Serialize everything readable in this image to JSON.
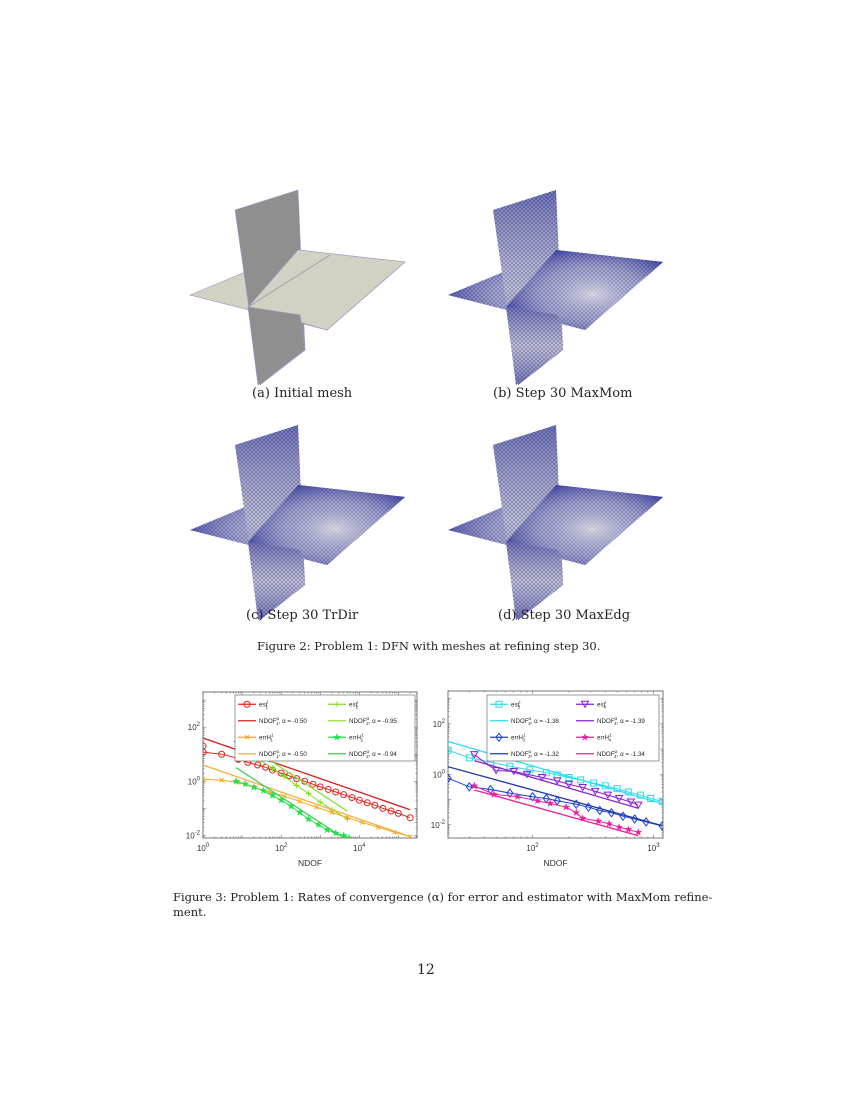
{
  "figure2": {
    "panels": [
      {
        "id": "a",
        "caption": "(a) Initial mesh",
        "style": "plain"
      },
      {
        "id": "b",
        "caption": "(b) Step 30 MaxMom",
        "style": "mesh"
      },
      {
        "id": "c",
        "caption": "(c) Step 30 TrDir",
        "style": "mesh"
      },
      {
        "id": "d",
        "caption": "(d) Step 30 MaxEdg",
        "style": "mesh"
      }
    ],
    "caption": "Figure 2: Problem 1: DFN with meshes at refining step 30.",
    "colors": {
      "plain_horizontal": "#d3d0c4",
      "plain_vertical": "#8f8f8f",
      "mesh_dark": "#1a1f8a",
      "mesh_light": "#c9c9d6"
    }
  },
  "figure3": {
    "caption_line1": "Figure 3: Problem 1: Rates of convergence (α) for error and estimator with MaxMom refine-",
    "caption_line2": "ment."
  },
  "page_number": "12",
  "chart_data": [
    {
      "type": "line",
      "title": "",
      "xlabel": "NDOF",
      "ylabel": "",
      "xscale": "log",
      "yscale": "log",
      "xlim": [
        1,
        300000
      ],
      "ylim": [
        0.008,
        2000
      ],
      "xticks": [
        "10^0",
        "10^2",
        "10^4"
      ],
      "yticks": [
        "10^-2",
        "10^0",
        "10^2"
      ],
      "grid": false,
      "legend_position": "top-right (inside, 2 columns)",
      "series": [
        {
          "name": "est^I_1",
          "color": "#e0241e",
          "marker": "circle",
          "x": [
            1,
            1,
            3,
            8,
            8,
            14,
            25,
            40,
            60,
            100,
            160,
            250,
            400,
            650,
            1000,
            1600,
            2500,
            4000,
            6500,
            10000,
            16000,
            25000,
            40000,
            65000,
            100000,
            200000
          ],
          "y": [
            20,
            12,
            10,
            7,
            6.5,
            5,
            4,
            3.3,
            2.6,
            2.0,
            1.6,
            1.25,
            1.0,
            0.78,
            0.62,
            0.5,
            0.4,
            0.32,
            0.25,
            0.2,
            0.16,
            0.13,
            0.1,
            0.08,
            0.065,
            0.045
          ]
        },
        {
          "name": "NDOF^α_1, α = -0.50",
          "color": "#d42020",
          "marker": "none",
          "x": [
            1,
            200000
          ],
          "y": [
            40,
            0.089
          ]
        },
        {
          "name": "est^I_2",
          "color": "#7ee01a",
          "marker": "plus",
          "x": [
            7,
            15,
            30,
            60,
            120,
            250,
            500,
            1000,
            2000,
            5000
          ],
          "y": [
            30,
            12,
            6,
            3,
            1.5,
            0.7,
            0.35,
            0.17,
            0.09,
            0.04
          ]
        },
        {
          "name": "NDOF^α_2, α = -0.95",
          "color": "#8ae23a",
          "marker": "none",
          "x": [
            7,
            5000
          ],
          "y": [
            40,
            0.078
          ]
        },
        {
          "name": "errH^1_1",
          "color": "#f5a81c",
          "marker": "x",
          "x": [
            1,
            3,
            8,
            20,
            50,
            120,
            300,
            800,
            2000,
            5000,
            12000,
            30000,
            80000,
            200000
          ],
          "y": [
            1.2,
            1.1,
            0.9,
            0.6,
            0.4,
            0.28,
            0.18,
            0.11,
            0.07,
            0.045,
            0.03,
            0.02,
            0.013,
            0.009
          ]
        },
        {
          "name": "NDOF^α_1, α = -0.50",
          "color": "#f0b040",
          "marker": "none",
          "x": [
            1,
            200000
          ],
          "y": [
            4,
            0.009
          ]
        },
        {
          "name": "errH^1_2",
          "color": "#22e04a",
          "marker": "star-filled",
          "x": [
            7,
            12,
            20,
            35,
            60,
            100,
            180,
            300,
            500,
            900,
            1500,
            2500,
            4000,
            5500
          ],
          "y": [
            1.0,
            0.8,
            0.6,
            0.45,
            0.3,
            0.2,
            0.12,
            0.07,
            0.04,
            0.025,
            0.016,
            0.012,
            0.01,
            0.008
          ]
        },
        {
          "name": "NDOF^α_2, α = -0.94",
          "color": "#44cc55",
          "marker": "none",
          "x": [
            7,
            5500
          ],
          "y": [
            3.2,
            0.006
          ]
        }
      ]
    },
    {
      "type": "line",
      "title": "",
      "xlabel": "NDOF",
      "ylabel": "",
      "xscale": "log",
      "yscale": "log",
      "xlim": [
        20,
        1200
      ],
      "ylim": [
        0.003,
        2000
      ],
      "xticks": [
        "10^2",
        "10^3"
      ],
      "yticks": [
        "10^-2",
        "10^0",
        "10^2"
      ],
      "grid": false,
      "legend_position": "top-right (inside, 2 columns)",
      "series": [
        {
          "name": "est^I_3",
          "color": "#33d6e6",
          "marker": "square",
          "x": [
            20,
            30,
            45,
            65,
            95,
            130,
            160,
            200,
            250,
            320,
            400,
            500,
            620,
            780,
            950,
            1180
          ],
          "y": [
            9,
            4.5,
            3,
            2.1,
            1.5,
            1.15,
            0.95,
            0.75,
            0.6,
            0.45,
            0.35,
            0.27,
            0.2,
            0.15,
            0.11,
            0.085
          ]
        },
        {
          "name": "NDOF^α_3, α = -1.38",
          "color": "#22e0f0",
          "marker": "none",
          "x": [
            20,
            1180
          ],
          "y": [
            20,
            0.07
          ]
        },
        {
          "name": "est^I_4",
          "color": "#8a1fd6",
          "marker": "triangle-down",
          "x": [
            33,
            50,
            70,
            90,
            120,
            160,
            200,
            260,
            330,
            420,
            520,
            650,
            750
          ],
          "y": [
            6,
            1.4,
            1.3,
            1.0,
            0.75,
            0.55,
            0.4,
            0.3,
            0.21,
            0.15,
            0.11,
            0.08,
            0.06
          ]
        },
        {
          "name": "NDOF^α_4, α = -1.39",
          "color": "#8a1fd6",
          "marker": "none",
          "x": [
            33,
            750
          ],
          "y": [
            3.5,
            0.045
          ]
        },
        {
          "name": "errH^1_3",
          "color": "#1d3fd6",
          "marker": "diamond",
          "x": [
            20,
            30,
            45,
            65,
            100,
            130,
            160,
            230,
            290,
            360,
            450,
            560,
            700,
            870,
            1180
          ],
          "y": [
            0.7,
            0.32,
            0.25,
            0.18,
            0.13,
            0.11,
            0.09,
            0.065,
            0.05,
            0.037,
            0.03,
            0.022,
            0.017,
            0.013,
            0.009
          ]
        },
        {
          "name": "NDOF^α_3, α = -1.32",
          "color": "#1a3aa8",
          "marker": "none",
          "x": [
            20,
            1180
          ],
          "y": [
            2,
            0.0093
          ]
        },
        {
          "name": "errH^1_4",
          "color": "#f01ea0",
          "marker": "star",
          "x": [
            33,
            48,
            75,
            110,
            140,
            190,
            230,
            260,
            350,
            430,
            520,
            620,
            750
          ],
          "y": [
            0.35,
            0.16,
            0.13,
            0.09,
            0.07,
            0.05,
            0.03,
            0.018,
            0.014,
            0.011,
            0.008,
            0.0065,
            0.005
          ]
        },
        {
          "name": "NDOF^α_4, α = -1.34",
          "color": "#e8209a",
          "marker": "none",
          "x": [
            33,
            750
          ],
          "y": [
            0.24,
            0.0037
          ]
        }
      ]
    }
  ]
}
